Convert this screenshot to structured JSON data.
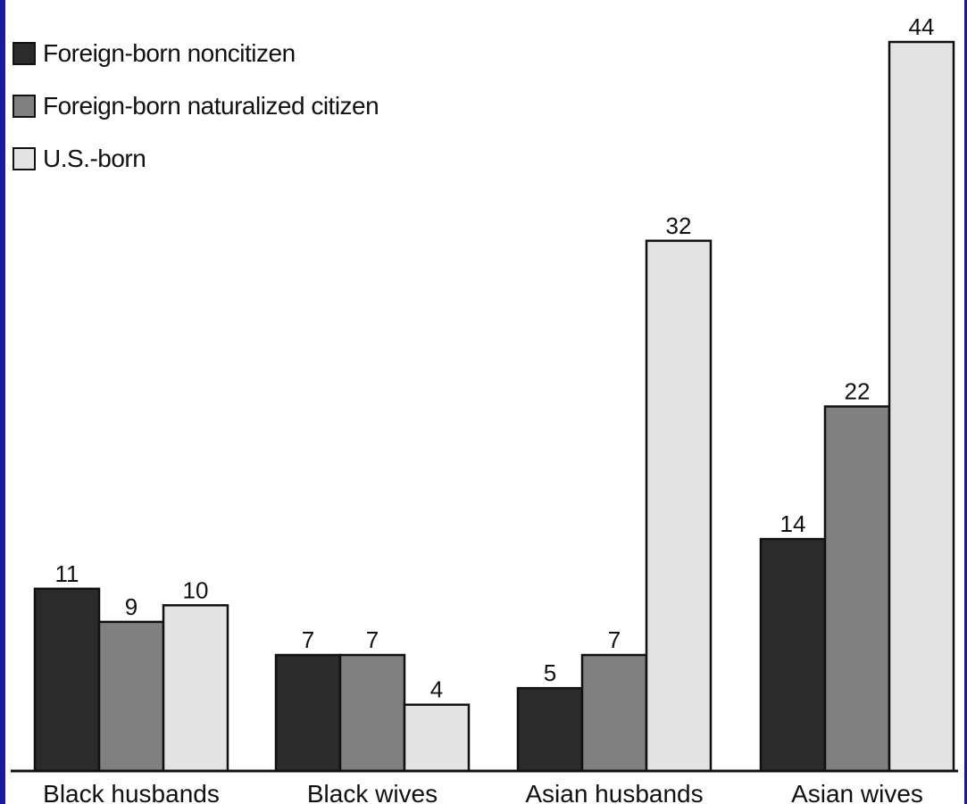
{
  "colors": {
    "frame": "#1a1a9c",
    "axis": "#111111",
    "outline": "#111111"
  },
  "legend": [
    {
      "name": "Foreign-born noncitizen",
      "color": "#2b2b2b"
    },
    {
      "name": "Foreign-born naturalized citizen",
      "color": "#808080"
    },
    {
      "name": "U.S.-born",
      "color": "#e3e3e3"
    }
  ],
  "chart_data": {
    "type": "bar",
    "categories": [
      "Black husbands",
      "Black wives",
      "Asian husbands",
      "Asian wives"
    ],
    "series": [
      {
        "name": "Foreign-born noncitizen",
        "color": "#2b2b2b",
        "values": [
          11,
          7,
          5,
          14
        ]
      },
      {
        "name": "Foreign-born naturalized citizen",
        "color": "#808080",
        "values": [
          9,
          7,
          7,
          22
        ]
      },
      {
        "name": "U.S.-born",
        "color": "#e3e3e3",
        "values": [
          10,
          4,
          32,
          44
        ]
      }
    ],
    "ylim": [
      0,
      44
    ],
    "grid": false,
    "legend_position": "top-left",
    "data_labels": true
  }
}
